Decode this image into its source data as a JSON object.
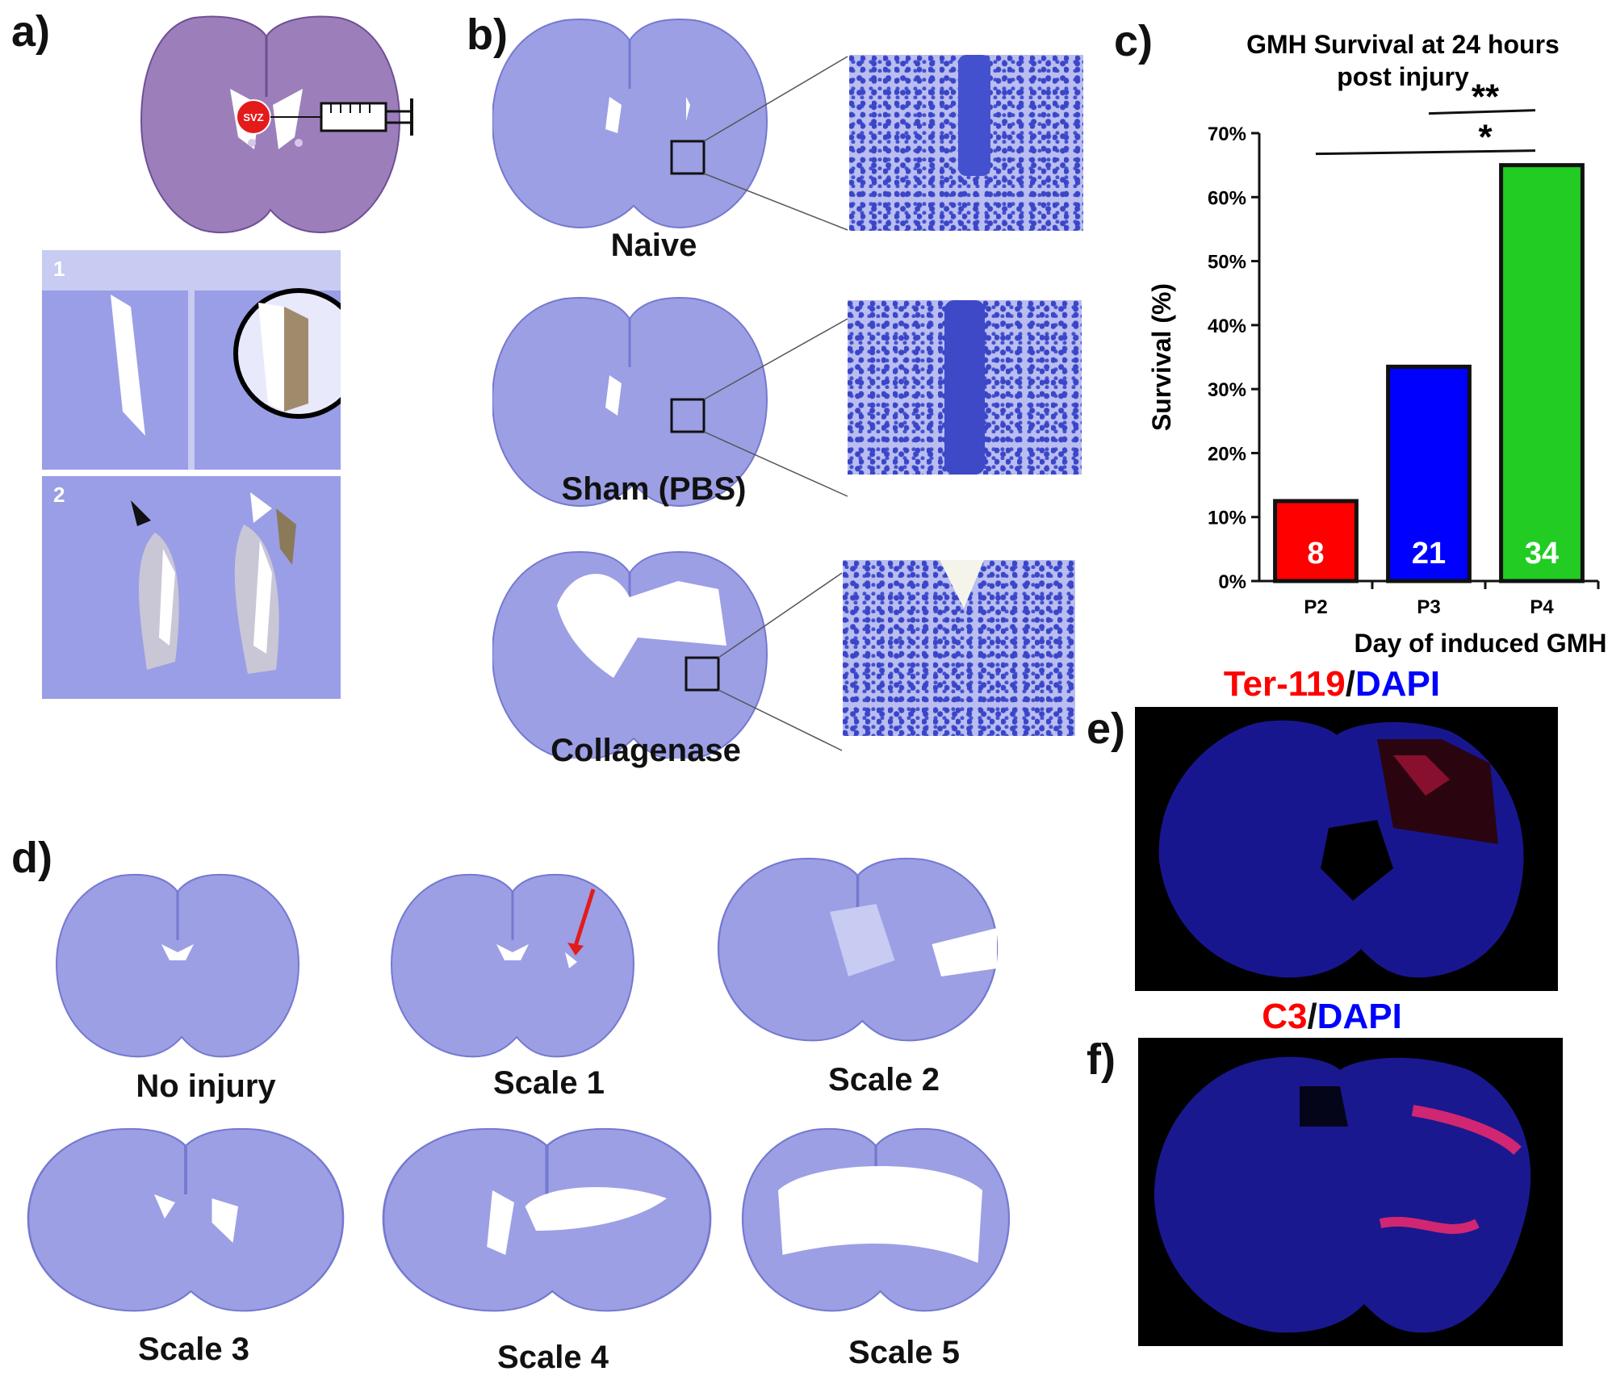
{
  "panels": {
    "a": {
      "label": "a)",
      "marker": "SVZ",
      "inset1": "1",
      "inset2": "2"
    },
    "b": {
      "label": "b)",
      "captions": [
        "Naive",
        "Sham (PBS)",
        "Collagenase"
      ]
    },
    "c": {
      "label": "c)"
    },
    "d": {
      "label": "d)",
      "captions": [
        "No injury",
        "Scale 1",
        "Scale 2",
        "Scale 3",
        "Scale 4",
        "Scale 5"
      ]
    },
    "e": {
      "label": "e)",
      "title_a": "Ter-119",
      "title_sep": "/",
      "title_b": "DAPI"
    },
    "f": {
      "label": "f)",
      "title_a": "C3",
      "title_sep": "/",
      "title_b": "DAPI"
    }
  },
  "colors": {
    "red": "#ff0000",
    "blue": "#0000ff",
    "green": "#22cc22",
    "stain": "#9a9ee6"
  },
  "chart_data": {
    "type": "bar",
    "title_line1": "GMH Survival at 24 hours",
    "title_line2": "post injury",
    "categories": [
      "P2",
      "P3",
      "P4"
    ],
    "values": [
      12.5,
      33.5,
      65
    ],
    "n_labels": [
      "8",
      "21",
      "34"
    ],
    "bar_colors": [
      "#ff0000",
      "#0000ff",
      "#22cc22"
    ],
    "ylim": [
      0,
      70
    ],
    "yticks": [
      0,
      10,
      20,
      30,
      40,
      50,
      60,
      70
    ],
    "ytick_labels": [
      "0%",
      "10%",
      "20%",
      "30%",
      "40%",
      "50%",
      "60%",
      "70%"
    ],
    "xlabel": "Day of induced GMH",
    "ylabel": "Survival (%)",
    "significance": [
      {
        "from": "P2",
        "to": "P4",
        "label": "*"
      },
      {
        "from": "P3",
        "to": "P4",
        "label": "**"
      }
    ]
  }
}
